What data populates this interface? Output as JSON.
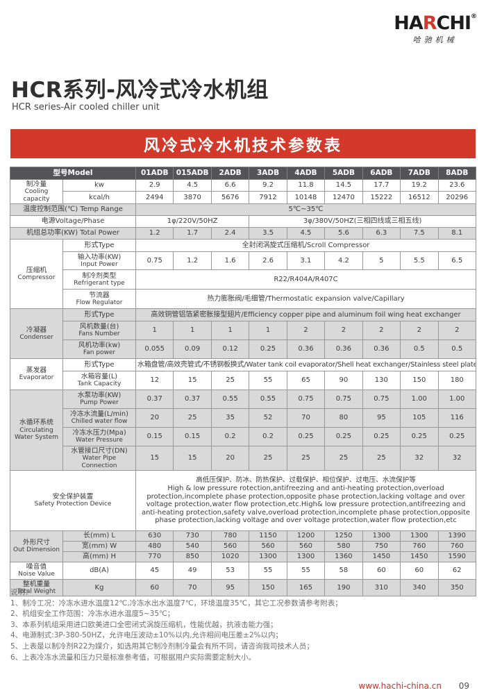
{
  "logo": {
    "brand_pre": "HA",
    "brand_red": "R",
    "brand_post": "CHI",
    "registered": "®",
    "subtitle": "哈驰机械"
  },
  "page_header": {
    "title": "HCR系列-风冷式冷水机组",
    "subtitle": "HCR series-Air cooled chiller unit"
  },
  "banner": {
    "title": "风冷式冷水机技术参数表"
  },
  "colors": {
    "accent_red": "#d2392b",
    "table_header_bg": "#545456",
    "row_gray": "#d9d9d9"
  },
  "table": {
    "model_header": "型号Model",
    "models": [
      "01ADB",
      "015ADB",
      "2ADB",
      "3ADB",
      "4ADB",
      "5ADB",
      "6ADB",
      "7ADB",
      "8ADB"
    ],
    "cooling": {
      "zh": "制冷量",
      "en": "Cooling capacity",
      "kw_label": "kw",
      "kw_values": [
        "2.9",
        "4.5",
        "6.6",
        "9.2",
        "11.8",
        "14.5",
        "17.7",
        "19.2",
        "23.6"
      ],
      "kcal_label": "kcal/h",
      "kcal_values": [
        "2494",
        "3870",
        "5676",
        "7912",
        "10148",
        "12470",
        "15222",
        "16512",
        "20296"
      ]
    },
    "temp_range": {
      "label": "温度控制范围(℃) Temp Range",
      "value": "5℃~35℃"
    },
    "power_supply": {
      "label": "电源Voltage/Phase",
      "single_phase": "1φ/220V/50HZ",
      "three_phase": "3φ/380V/50HZ(三相四线或三相五线)"
    },
    "total_power": {
      "label": "机组总功率(KW) Total Power",
      "values": [
        "1.2",
        "1.7",
        "2.4",
        "3.5",
        "4.5",
        "5.6",
        "6.3",
        "7.5",
        "8.1"
      ]
    },
    "compressor": {
      "zh": "压缩机",
      "en": "Compressor",
      "type_label": "形式Type",
      "type_value": "全封闭涡旋式压缩机/Scroll Compressor",
      "input_zh": "输入功率(KW)",
      "input_en": "Input Power",
      "input_values": [
        "0.75",
        "1.2",
        "1.6",
        "2.6",
        "3.1",
        "4.2",
        "5",
        "5.5",
        "6.5"
      ],
      "refrigerant_zh": "制冷剂类型",
      "refrigerant_en": "Refrigerant type",
      "refrigerant_value": "R22/R404A/R407C",
      "regulator_zh": "节流器",
      "regulator_en": "Flow Regulator",
      "regulator_value": "热力膨胀阀/毛细管/Thermostatic expansion valve/Capillary"
    },
    "condenser": {
      "zh": "冷凝器",
      "en": "Condenser",
      "type_label": "形式Type",
      "type_value": "高效铜管铝箔紧密胀接型翅片/Efficiency copper pipe and aluminum foil wing heat exchanger",
      "fans_zh": "风机数量(台)",
      "fans_en": "Fans Number",
      "fans_values": [
        "1",
        "1",
        "1",
        "1",
        "2",
        "2",
        "2",
        "2",
        "2"
      ],
      "fanpower_zh": "风机功率(kw)",
      "fanpower_en": "Fan power",
      "fanpower_values": [
        "0.055",
        "0.09",
        "0.12",
        "0.25",
        "0.36",
        "0.36",
        "0.36",
        "0.5",
        "0.5"
      ]
    },
    "evaporator": {
      "zh": "蒸发器",
      "en": "Evaporator",
      "type_label": "形式Type",
      "type_value": "水箱盘管/高效壳管式/不锈钢板换式/Water tank coil evaporator/Shell heat exchanger/Stainless steel plate heat exchanger",
      "tank_zh": "水箱容量(L)",
      "tank_en": "Tank Capacity",
      "tank_values": [
        "12",
        "15",
        "25",
        "55",
        "65",
        "90",
        "130",
        "150",
        "180"
      ]
    },
    "water_system": {
      "zh": "水循环系统",
      "en1": "Circulating",
      "en2": "Water System",
      "pump_zh": "水泵功率(KW)",
      "pump_en": "Pump Power",
      "pump_values": [
        "0.37",
        "0.37",
        "0.55",
        "0.55",
        "0.75",
        "0.75",
        "0.75",
        "1.00",
        "1.00"
      ],
      "flow_zh": "冷冻水流量(L/min)",
      "flow_en": "Chilled water flow",
      "flow_values": [
        "20",
        "25",
        "35",
        "52",
        "70",
        "80",
        "95",
        "105",
        "116"
      ],
      "pressure_zh": "冷冻水压力(Mpa)",
      "pressure_en": "Water Pressure",
      "pressure_values": [
        "0.15",
        "0.15",
        "0.2",
        "0.2",
        "0.25",
        "0.25",
        "0.25",
        "0.25",
        "0.25"
      ],
      "pipe_zh": "水管接口尺寸(DN)",
      "pipe_en": "Water Pipe Connection",
      "pipe_values": [
        "15",
        "15",
        "20",
        "25",
        "25",
        "25",
        "25",
        "32",
        "32"
      ]
    },
    "safety": {
      "zh": "安全保护装置",
      "en": "Safety Protection Device",
      "text_zh": "高低压保护、防冰、防热保护、过载保护、相位保护、过电压、水流保护等",
      "text_en": "High & low pressure rotection,antifreezing and anti-heating protection,overload protection,incomplete phase protection,opposite phase protection,lacking voltage and over voltage protection,water flow protection,etc.High& low pressure protection,antifreezing and anti-heating protection,safety valve,overload protection,incomplete phase protection,opposite phase protection,lacking voltage and over voltage protection,water flow protection,etc"
    },
    "dimension": {
      "zh": "外形尺寸",
      "en": "Out Dimension",
      "l_label": "长(mm) L",
      "l_values": [
        "630",
        "730",
        "780",
        "1150",
        "1200",
        "1250",
        "1300",
        "1300",
        "1390"
      ],
      "w_label": "宽(mm) W",
      "w_values": [
        "480",
        "540",
        "560",
        "560",
        "560",
        "580",
        "750",
        "760",
        "760"
      ],
      "h_label": "高(mm) H",
      "h_values": [
        "770",
        "850",
        "1020",
        "1300",
        "1300",
        "1360",
        "1450",
        "1450",
        "1590"
      ]
    },
    "noise": {
      "zh": "噪音值",
      "en": "Noise Value",
      "unit": "dB(A)",
      "values": [
        "45",
        "49",
        "53",
        "55",
        "55",
        "58",
        "60",
        "60",
        "62"
      ]
    },
    "weight": {
      "zh": "整机重量",
      "en": "Total Weight",
      "unit": "Kg",
      "values": [
        "60",
        "70",
        "95",
        "150",
        "165",
        "190",
        "310",
        "340",
        "350"
      ]
    }
  },
  "notes": {
    "heading": "说明：",
    "items": [
      "1、制冷工况：冷冻水进水温度12℃,冷冻水出水温度7℃，环境温度35℃，其它工况参数请参考附表；",
      "2、机组安全工作范围：冷冻水进水温度5~35℃；",
      "3、本系列机组采用进口欧美进口全密闭式涡旋压缩机，性能优越，抗液击能力强；",
      "4、电源制式:3P-380-50HZ，允许电压波动±10%以内,允许相间电压差±2%以内；",
      "5、上表是以制冷剂R22为媒介，如选用其它制冷剂制冷量会有所不同，请咨询我司技术人员；",
      "6、上表冷冻水流量和压力只是标准参考值，可根据用户实际需要定制大小。"
    ]
  },
  "footer": {
    "url": "www.hachi-china.cn",
    "page": "09"
  }
}
